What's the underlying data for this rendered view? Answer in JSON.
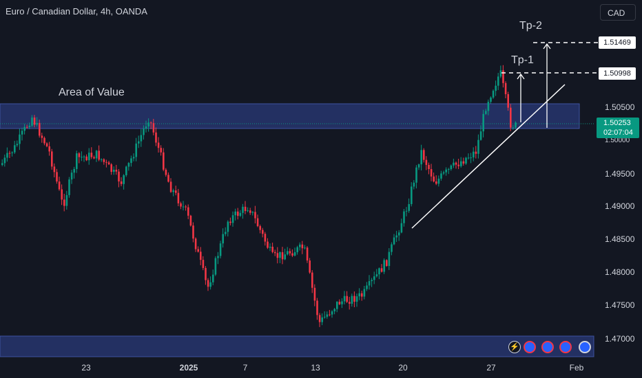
{
  "header": {
    "symbol_title": "Euro / Canadian Dollar, 4h, OANDA"
  },
  "currency_button": {
    "label": "CAD"
  },
  "annotations": {
    "area_of_value": "Area of Value",
    "tp1": "Tp-1",
    "tp2": "Tp-2"
  },
  "price_labels": {
    "tp2_price": "1.51469",
    "tp1_price": "1.50998"
  },
  "current_price": {
    "price": "1.50253",
    "countdown": "02:07:04"
  },
  "price_axis": {
    "ticks": [
      "1.50500",
      "1.50000",
      "1.49500",
      "1.49000",
      "1.48500",
      "1.48000",
      "1.47500",
      "1.47000"
    ]
  },
  "time_axis": {
    "ticks": [
      "23",
      "2025",
      "7",
      "13",
      "20",
      "27",
      "Feb"
    ]
  },
  "colors": {
    "background": "#131722",
    "up_candle": "#089981",
    "down_candle": "#f23645",
    "zone_fill": "#2a3a78",
    "text": "#d1d4dc"
  },
  "event_icons": [
    "lightning-icon",
    "eu-flag-icon",
    "eu-flag-icon",
    "eu-flag-icon",
    "eu-flag-icon"
  ]
}
